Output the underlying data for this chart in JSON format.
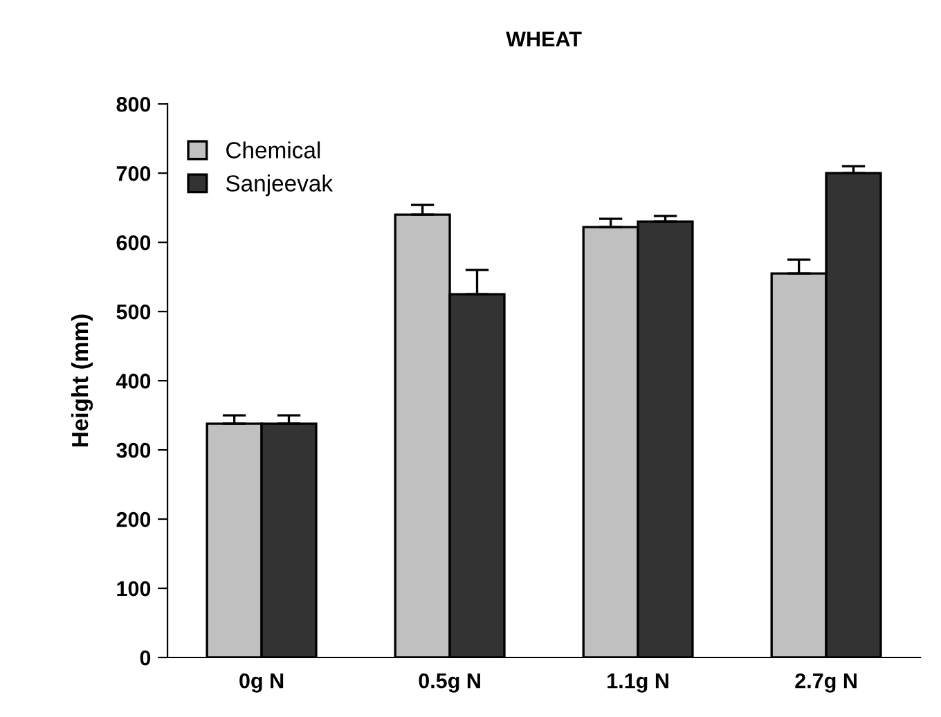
{
  "chart_data": {
    "type": "bar",
    "title": "WHEAT",
    "ylabel": "Height (mm)",
    "categories": [
      "0g N",
      "0.5g N",
      "1.1g N",
      "2.7g N"
    ],
    "series": [
      {
        "name": "Chemical",
        "color": "#c0c0c0",
        "values": [
          338,
          640,
          622,
          555
        ],
        "errors": [
          [
            338,
            350
          ],
          [
            640,
            654
          ],
          [
            622,
            634
          ],
          [
            555,
            575
          ]
        ]
      },
      {
        "name": "Sanjeevak",
        "color": "#333333",
        "values": [
          338,
          525,
          630,
          700
        ],
        "errors": [
          [
            338,
            350
          ],
          [
            525,
            560
          ],
          [
            630,
            638
          ],
          [
            700,
            710
          ]
        ]
      }
    ],
    "ylim": [
      0,
      800
    ],
    "yticks": [
      0,
      100,
      200,
      300,
      400,
      500,
      600,
      700,
      800
    ],
    "grid": false,
    "legend": "top left"
  }
}
